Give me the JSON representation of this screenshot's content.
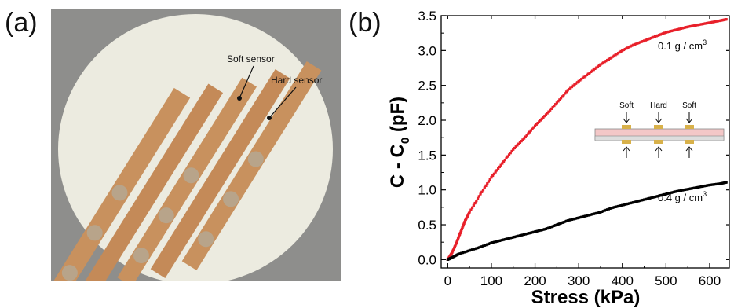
{
  "panels": {
    "a": {
      "label": "(a)",
      "annotations": {
        "soft": "Soft sensor",
        "hard": "Hard sensor"
      }
    },
    "b": {
      "label": "(b)"
    }
  },
  "inset": {
    "labels": [
      "Soft",
      "Hard",
      "Soft"
    ]
  },
  "colors": {
    "red_series": "#e8202a",
    "black_series": "#000000",
    "photo_bg": "#8e8e8c",
    "foam": "#ecebe0",
    "copper": "#c8915e"
  },
  "chart_data": {
    "type": "scatter",
    "xlabel": "Stress (kPa)",
    "ylabel_main": "C - C",
    "ylabel_sub": "0",
    "ylabel_unit": " (pF)",
    "xlim": [
      -15,
      645
    ],
    "ylim": [
      -0.12,
      3.5
    ],
    "xticks": [
      0,
      100,
      200,
      300,
      400,
      500,
      600
    ],
    "yticks": [
      "0.0",
      "0.5",
      "1.0",
      "1.5",
      "2.0",
      "2.5",
      "3.0",
      "3.5"
    ],
    "series": [
      {
        "name": "0.1 g / cm3",
        "label_base": "0.1 g / cm",
        "label_sup": "3",
        "color": "#e8202a",
        "points": [
          [
            0,
            0
          ],
          [
            10,
            0.1
          ],
          [
            20,
            0.24
          ],
          [
            30,
            0.4
          ],
          [
            40,
            0.56
          ],
          [
            50,
            0.68
          ],
          [
            75,
            0.94
          ],
          [
            100,
            1.18
          ],
          [
            125,
            1.38
          ],
          [
            150,
            1.58
          ],
          [
            175,
            1.74
          ],
          [
            200,
            1.92
          ],
          [
            225,
            2.08
          ],
          [
            250,
            2.25
          ],
          [
            275,
            2.43
          ],
          [
            300,
            2.56
          ],
          [
            325,
            2.68
          ],
          [
            350,
            2.8
          ],
          [
            375,
            2.9
          ],
          [
            400,
            3.0
          ],
          [
            425,
            3.08
          ],
          [
            450,
            3.14
          ],
          [
            475,
            3.2
          ],
          [
            500,
            3.26
          ],
          [
            525,
            3.3
          ],
          [
            550,
            3.34
          ],
          [
            575,
            3.37
          ],
          [
            600,
            3.4
          ],
          [
            625,
            3.43
          ],
          [
            640,
            3.45
          ]
        ]
      },
      {
        "name": "0.4 g / cm3",
        "label_base": "0.4 g / cm",
        "label_sup": "3",
        "color": "#000000",
        "points": [
          [
            0,
            0
          ],
          [
            10,
            0.03
          ],
          [
            25,
            0.08
          ],
          [
            50,
            0.13
          ],
          [
            75,
            0.18
          ],
          [
            100,
            0.24
          ],
          [
            125,
            0.28
          ],
          [
            150,
            0.32
          ],
          [
            175,
            0.36
          ],
          [
            200,
            0.4
          ],
          [
            225,
            0.44
          ],
          [
            250,
            0.5
          ],
          [
            275,
            0.56
          ],
          [
            300,
            0.6
          ],
          [
            325,
            0.64
          ],
          [
            350,
            0.68
          ],
          [
            375,
            0.74
          ],
          [
            400,
            0.78
          ],
          [
            425,
            0.82
          ],
          [
            450,
            0.86
          ],
          [
            475,
            0.9
          ],
          [
            500,
            0.94
          ],
          [
            525,
            0.98
          ],
          [
            550,
            1.01
          ],
          [
            575,
            1.04
          ],
          [
            600,
            1.07
          ],
          [
            625,
            1.09
          ],
          [
            640,
            1.11
          ]
        ]
      }
    ]
  }
}
